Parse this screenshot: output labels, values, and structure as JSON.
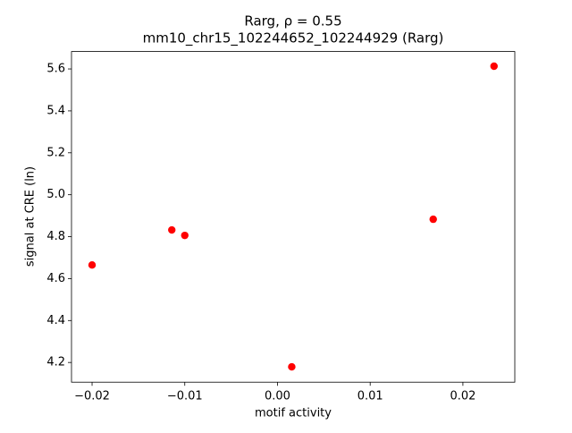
{
  "chart_data": {
    "type": "scatter",
    "title": "Rarg, ρ = 0.55",
    "subtitle": "mm10_chr15_102244652_102244929 (Rarg)",
    "x_label": "motif activity",
    "y_label": "signal at CRE (ln)",
    "series": [
      {
        "color": "#ff0000",
        "x": [
          -0.02,
          -0.0114,
          -0.01,
          0.00154,
          0.0168,
          0.02336
        ],
        "values": [
          4.665,
          4.832,
          4.806,
          4.179,
          4.883,
          5.613
        ]
      }
    ],
    "xlim": [
      -0.02222,
      0.0256
    ],
    "ylim": [
      4.106,
      5.683
    ],
    "xticks": [
      {
        "value": -0.02,
        "label": "−0.02"
      },
      {
        "value": -0.01,
        "label": "−0.01"
      },
      {
        "value": 0,
        "label": "0.00"
      },
      {
        "value": 0.01,
        "label": "0.01"
      },
      {
        "value": 0.02,
        "label": "0.02"
      }
    ],
    "yticks": [
      4.2,
      4.4,
      4.6,
      4.8,
      {
        "value": 5,
        "label": "5.0"
      },
      5.2,
      5.4,
      5.6
    ],
    "grid": false
  }
}
